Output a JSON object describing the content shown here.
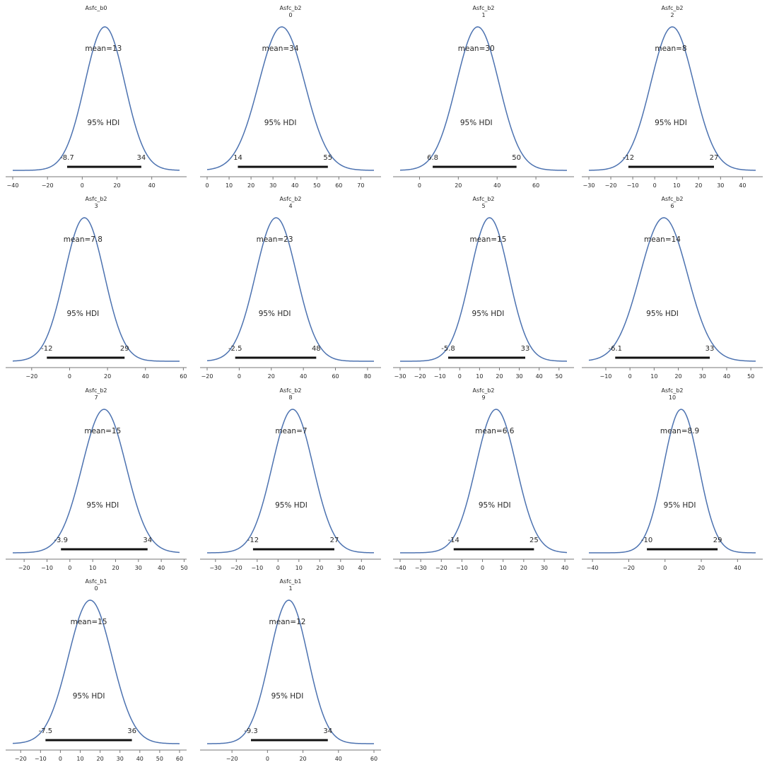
{
  "hdi_label": "95% HDI",
  "colors": {
    "curve": "#4c72b0",
    "hdi_bar": "#111111",
    "axis": "#777777",
    "text": "#262626"
  },
  "chart_data": [
    {
      "type": "line",
      "title": [
        "Asfc_b0"
      ],
      "mean": 13,
      "mean_label": "mean=13",
      "hdi": [
        -8.7,
        34
      ],
      "hdi_labels": [
        "-8.7",
        "34"
      ],
      "xlim": [
        -40,
        56
      ],
      "xticks": [
        -40,
        -20,
        0,
        20,
        40
      ],
      "sd": 11.5
    },
    {
      "type": "line",
      "title": [
        "Asfc_b2",
        "0"
      ],
      "mean": 34,
      "mean_label": "mean=34",
      "hdi": [
        14,
        55
      ],
      "hdi_labels": [
        "14",
        "55"
      ],
      "xlim": [
        0,
        76
      ],
      "xticks": [
        0,
        10,
        20,
        30,
        40,
        50,
        60,
        70
      ],
      "sd": 10.5
    },
    {
      "type": "line",
      "title": [
        "Asfc_b2",
        "1"
      ],
      "mean": 30,
      "mean_label": "mean=30",
      "hdi": [
        6.8,
        50
      ],
      "hdi_labels": [
        "6.8",
        "50"
      ],
      "xlim": [
        -10,
        76
      ],
      "xticks": [
        0,
        20,
        40,
        60
      ],
      "sd": 11
    },
    {
      "type": "line",
      "title": [
        "Asfc_b2",
        "2"
      ],
      "mean": 8,
      "mean_label": "mean=8",
      "hdi": [
        -12,
        27
      ],
      "hdi_labels": [
        "-12",
        "27"
      ],
      "xlim": [
        -30,
        46
      ],
      "xticks": [
        -30,
        -20,
        -10,
        0,
        10,
        20,
        30,
        40
      ],
      "sd": 9.8
    },
    {
      "type": "line",
      "title": [
        "Asfc_b2",
        "3"
      ],
      "mean": 7.8,
      "mean_label": "mean=7.8",
      "hdi": [
        -12,
        29
      ],
      "hdi_labels": [
        "-12",
        "29"
      ],
      "xlim": [
        -30,
        58
      ],
      "xticks": [
        -20,
        0,
        20,
        40,
        60
      ],
      "sd": 10.5
    },
    {
      "type": "line",
      "title": [
        "Asfc_b2",
        "4"
      ],
      "mean": 23,
      "mean_label": "mean=23",
      "hdi": [
        -2.5,
        48
      ],
      "hdi_labels": [
        "-2.5",
        "48"
      ],
      "xlim": [
        -20,
        84
      ],
      "xticks": [
        -20,
        0,
        20,
        40,
        60,
        80
      ],
      "sd": 12.8
    },
    {
      "type": "line",
      "title": [
        "Asfc_b2",
        "5"
      ],
      "mean": 15,
      "mean_label": "mean=15",
      "hdi": [
        -5.8,
        33
      ],
      "hdi_labels": [
        "-5.8",
        "33"
      ],
      "xlim": [
        -30,
        54
      ],
      "xticks": [
        -30,
        -20,
        -10,
        0,
        10,
        20,
        30,
        40,
        50
      ],
      "sd": 9.7
    },
    {
      "type": "line",
      "title": [
        "Asfc_b2",
        "6"
      ],
      "mean": 14,
      "mean_label": "mean=14",
      "hdi": [
        -6.1,
        33
      ],
      "hdi_labels": [
        "-6.1",
        "33"
      ],
      "xlim": [
        -17,
        52
      ],
      "xticks": [
        -10,
        0,
        10,
        20,
        30,
        40,
        50
      ],
      "sd": 9.8
    },
    {
      "type": "line",
      "title": [
        "Asfc_b2",
        "7"
      ],
      "mean": 15,
      "mean_label": "mean=15",
      "hdi": [
        -3.9,
        34
      ],
      "hdi_labels": [
        "-3.9",
        "34"
      ],
      "xlim": [
        -25,
        48
      ],
      "xticks": [
        -20,
        -10,
        0,
        10,
        20,
        30,
        40,
        50
      ],
      "sd": 9.6
    },
    {
      "type": "line",
      "title": [
        "Asfc_b2",
        "8"
      ],
      "mean": 7,
      "mean_label": "mean=7",
      "hdi": [
        -12,
        27
      ],
      "hdi_labels": [
        "-12",
        "27"
      ],
      "xlim": [
        -34,
        46
      ],
      "xticks": [
        -30,
        -20,
        -10,
        0,
        10,
        20,
        30,
        40
      ],
      "sd": 9.8
    },
    {
      "type": "line",
      "title": [
        "Asfc_b2",
        "9"
      ],
      "mean": 6.6,
      "mean_label": "mean=6.6",
      "hdi": [
        -14,
        25
      ],
      "hdi_labels": [
        "-14",
        "25"
      ],
      "xlim": [
        -40,
        41
      ],
      "xticks": [
        -40,
        -30,
        -20,
        -10,
        0,
        10,
        20,
        30,
        40
      ],
      "sd": 9.8
    },
    {
      "type": "line",
      "title": [
        "Asfc_b2",
        "10"
      ],
      "mean": 8.9,
      "mean_label": "mean=8.9",
      "hdi": [
        -10,
        29
      ],
      "hdi_labels": [
        "-10",
        "29"
      ],
      "xlim": [
        -42,
        50
      ],
      "xticks": [
        -40,
        -20,
        0,
        20,
        40
      ],
      "sd": 9.7
    },
    {
      "type": "line",
      "title": [
        "Asfc_b1",
        "0"
      ],
      "mean": 15,
      "mean_label": "mean=15",
      "hdi": [
        -7.5,
        36
      ],
      "hdi_labels": [
        "-7.5",
        "36"
      ],
      "xlim": [
        -24,
        60
      ],
      "xticks": [
        -20,
        -10,
        0,
        10,
        20,
        30,
        40,
        50,
        60
      ],
      "sd": 11
    },
    {
      "type": "line",
      "title": [
        "Asfc_b1",
        "1"
      ],
      "mean": 12,
      "mean_label": "mean=12",
      "hdi": [
        -9.3,
        34
      ],
      "hdi_labels": [
        "-9.3",
        "34"
      ],
      "xlim": [
        -34,
        60
      ],
      "xticks": [
        -20,
        0,
        20,
        40,
        60
      ],
      "sd": 10.8
    }
  ]
}
